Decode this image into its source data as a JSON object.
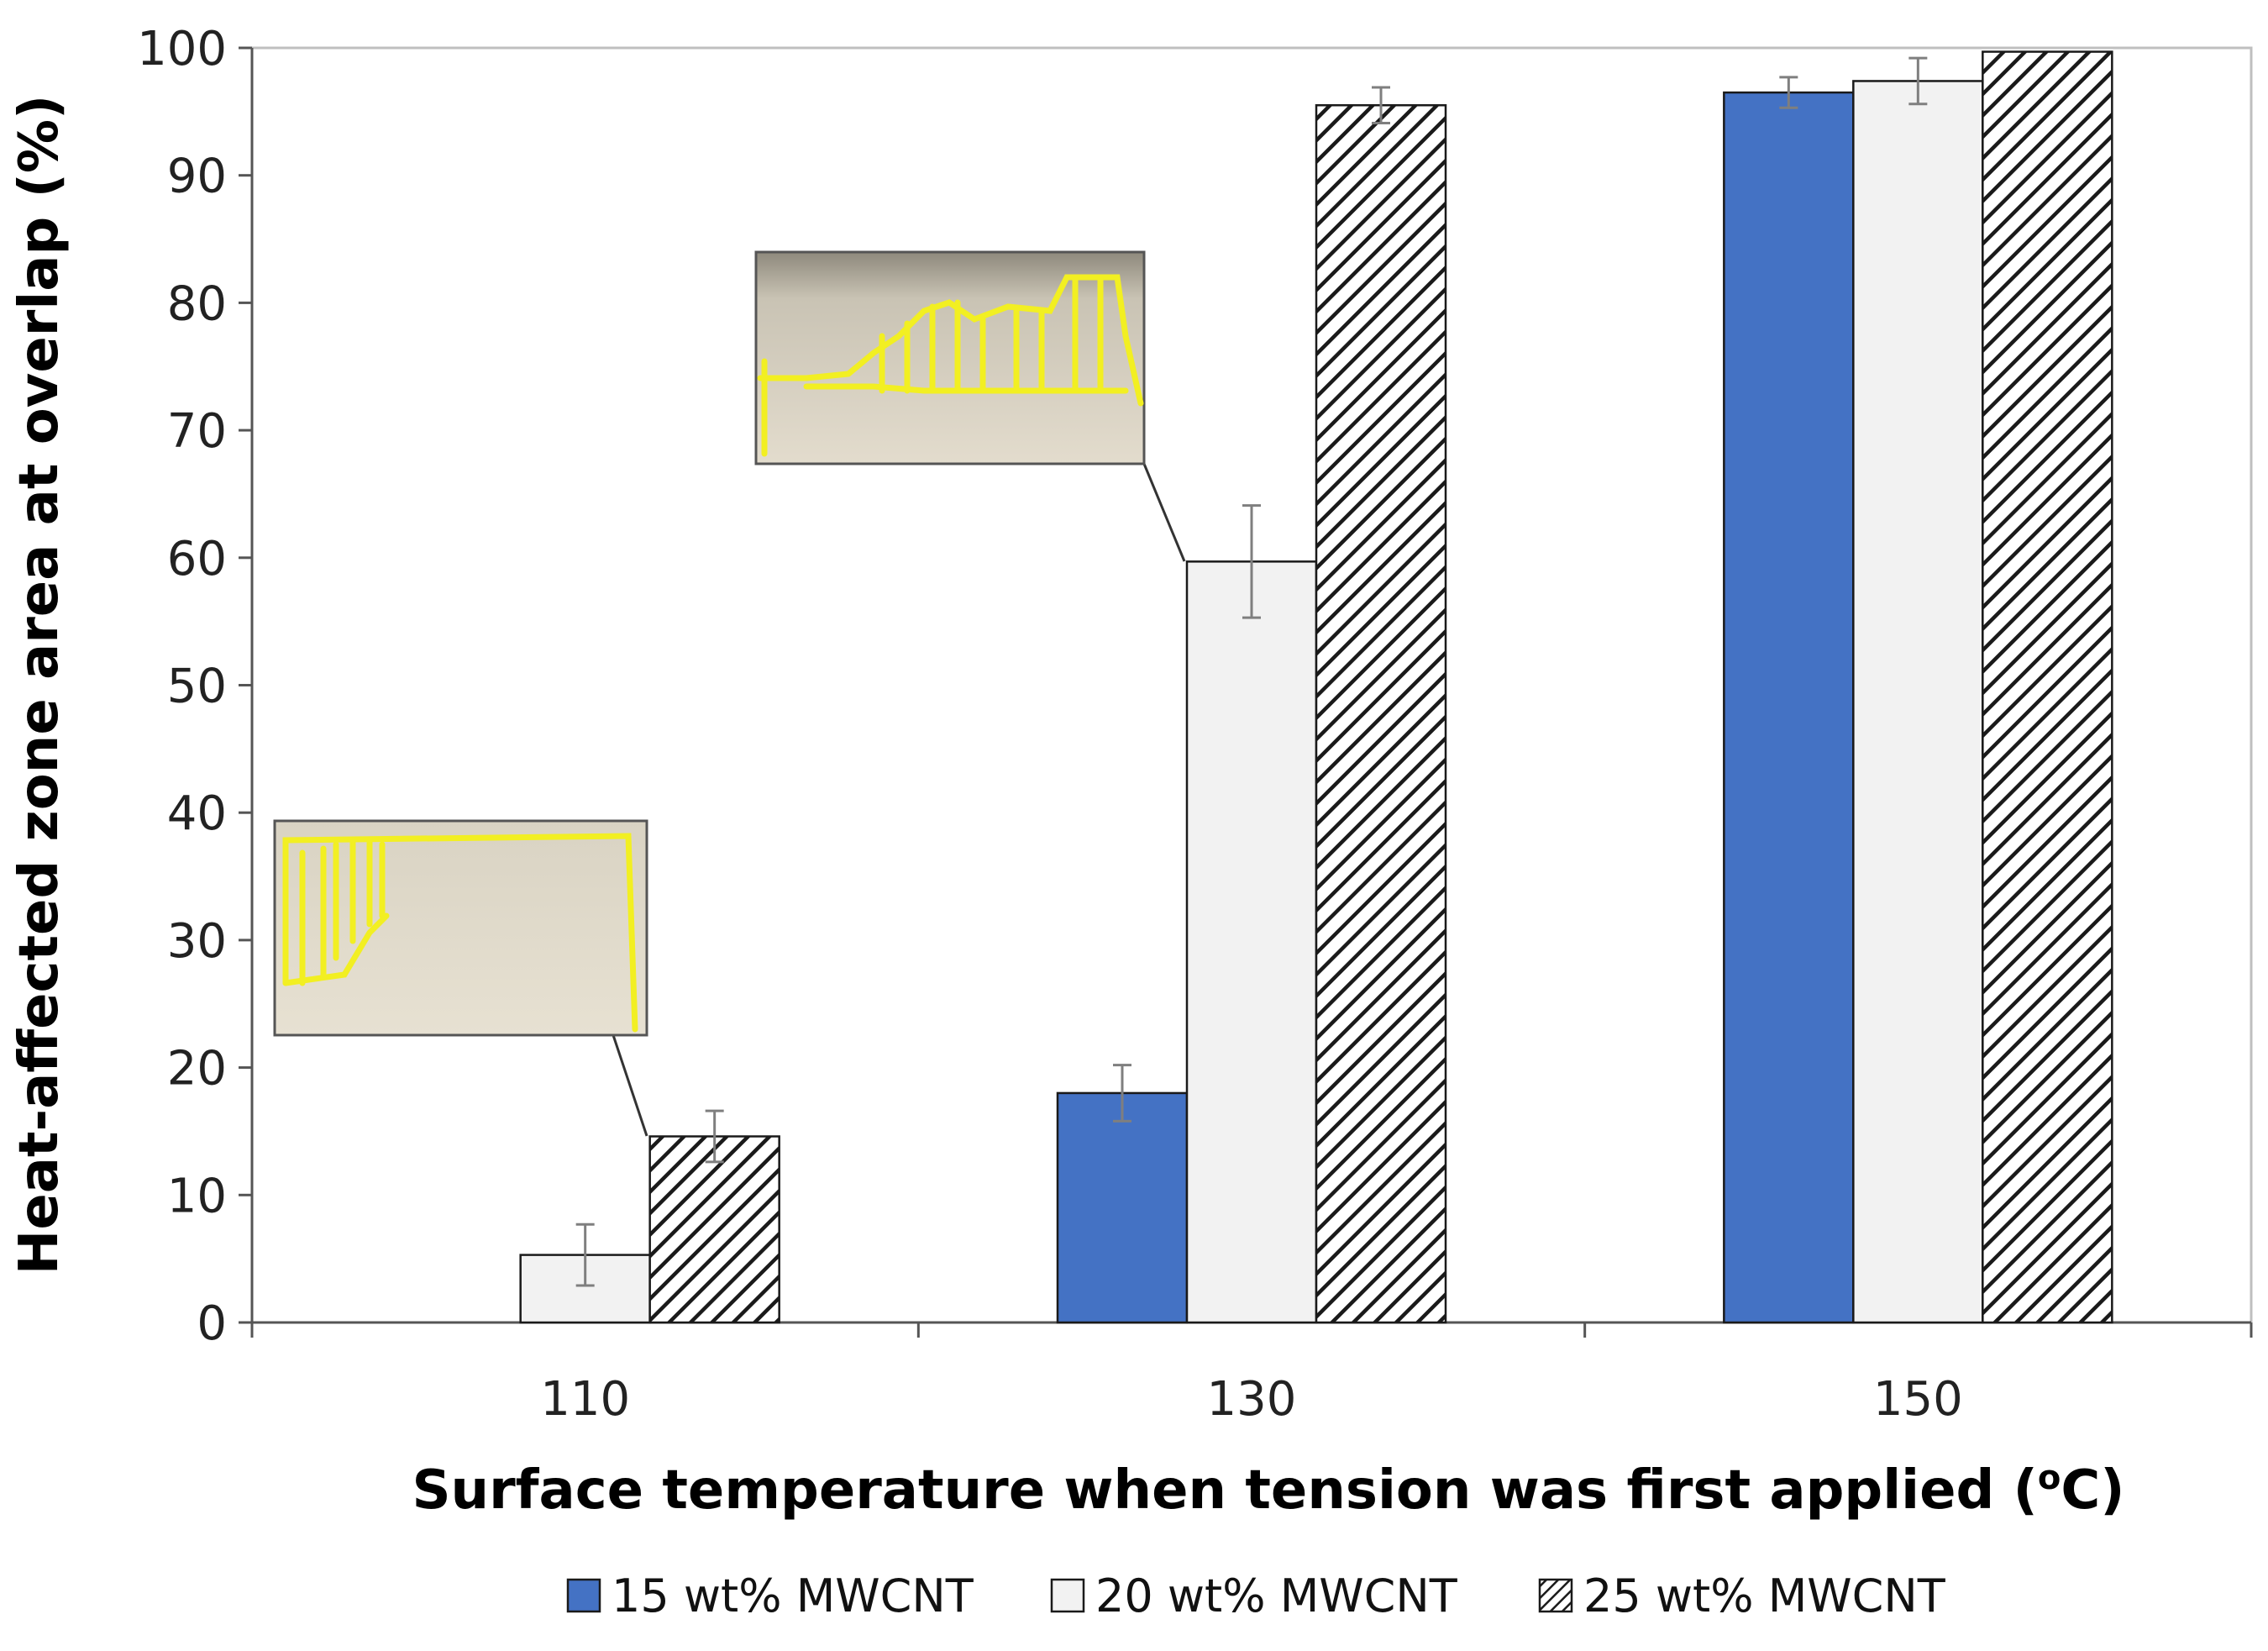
{
  "chart_data": {
    "type": "bar",
    "title": "",
    "xlabel": "Surface temperature when tension was first applied (",
    "xlabel_superscript": "o",
    "xlabel_unit": "C)",
    "ylabel": "Heat-affected zone area at overlap (%)",
    "ylim": [
      0,
      100
    ],
    "yticks": [
      "0",
      "10",
      "20",
      "30",
      "40",
      "50",
      "60",
      "70",
      "80",
      "90",
      "100"
    ],
    "categories": [
      "110",
      "130",
      "150"
    ],
    "series": [
      {
        "name": "15 wt% MWCNT",
        "style": "solid",
        "color": "#4472C4",
        "values": [
          0,
          18,
          96.5
        ],
        "errors": [
          0,
          2.2,
          1.2
        ]
      },
      {
        "name": "20 wt% MWCNT",
        "style": "light",
        "color": "#F2F2F2",
        "values": [
          5.3,
          59.7,
          97.4
        ],
        "errors": [
          2.4,
          4.4,
          1.8
        ]
      },
      {
        "name": "25 wt% MWCNT",
        "style": "hatched",
        "color": "#222222",
        "values": [
          14.6,
          95.5,
          99.7
        ],
        "errors": [
          2.0,
          1.4,
          0
        ]
      }
    ],
    "legend_position": "bottom",
    "insets": [
      {
        "description": "micrograph with yellow outlined heat-affected region",
        "category": "110"
      },
      {
        "description": "micrograph with yellow outlined heat-affected region",
        "category": "130"
      }
    ]
  }
}
